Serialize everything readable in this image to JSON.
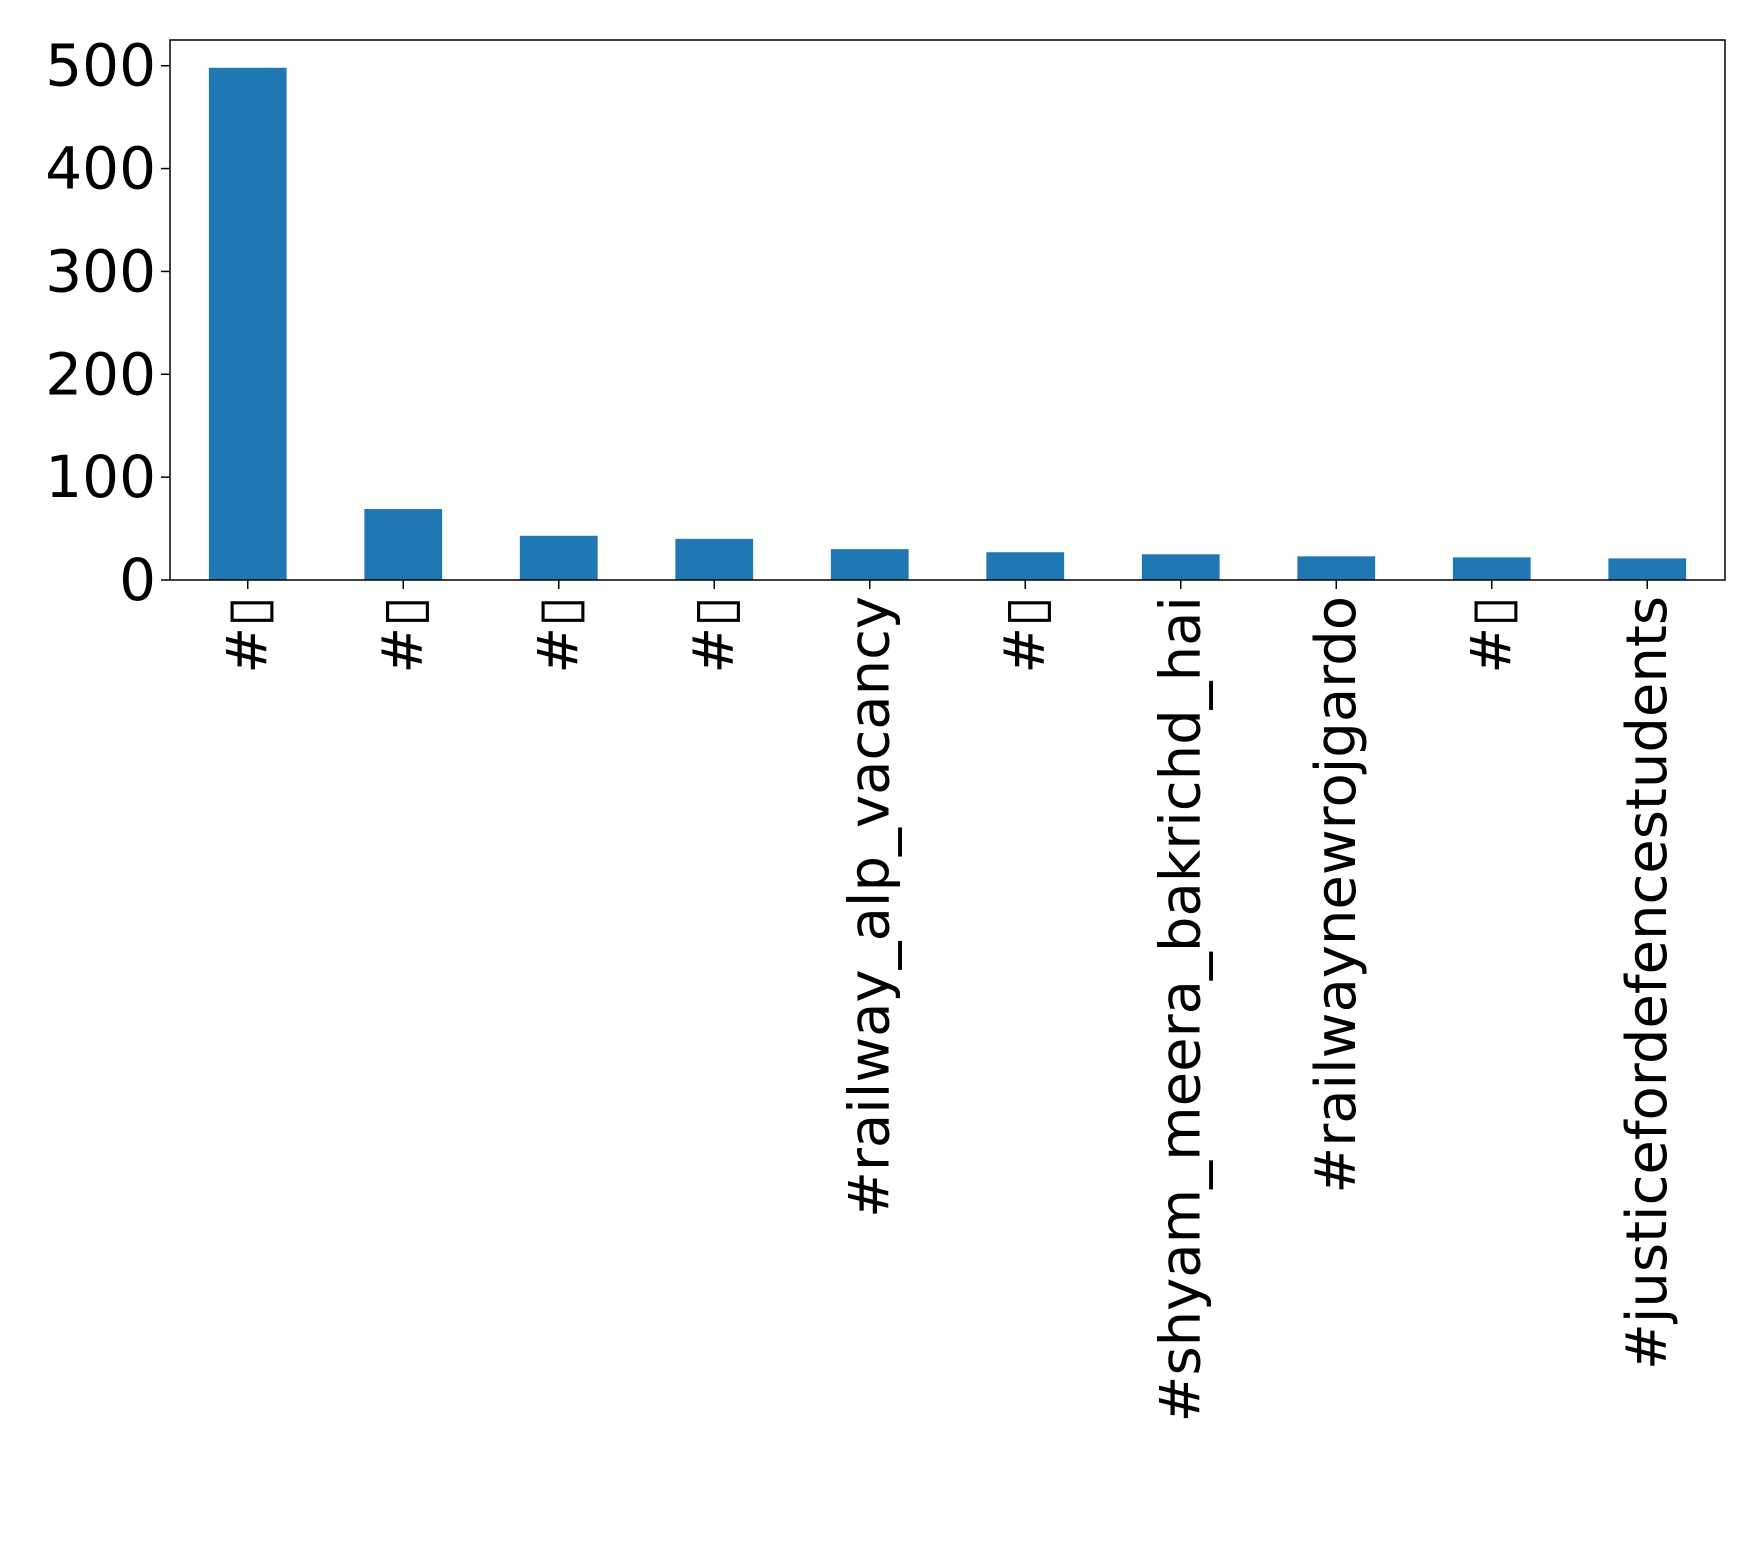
{
  "chart_data": {
    "type": "bar",
    "title": "",
    "xlabel": "",
    "ylabel": "",
    "categories": [
      "#▯",
      "#▯",
      "#▯",
      "#▯",
      "#railway_alp_vacancy",
      "#▯",
      "#shyam_meera_bakrichd_hai",
      "#railwaynewrojgardo",
      "#▯",
      "#justicefordefencestudents"
    ],
    "series": [
      {
        "values": [
          498,
          69,
          43,
          40,
          30,
          27,
          25,
          23,
          22,
          21
        ]
      }
    ],
    "ylim": [
      0,
      525
    ],
    "yticks": [
      0,
      100,
      200,
      300,
      400,
      500
    ],
    "grid": false,
    "legend": "none",
    "bar_color": "#1f77b4"
  }
}
